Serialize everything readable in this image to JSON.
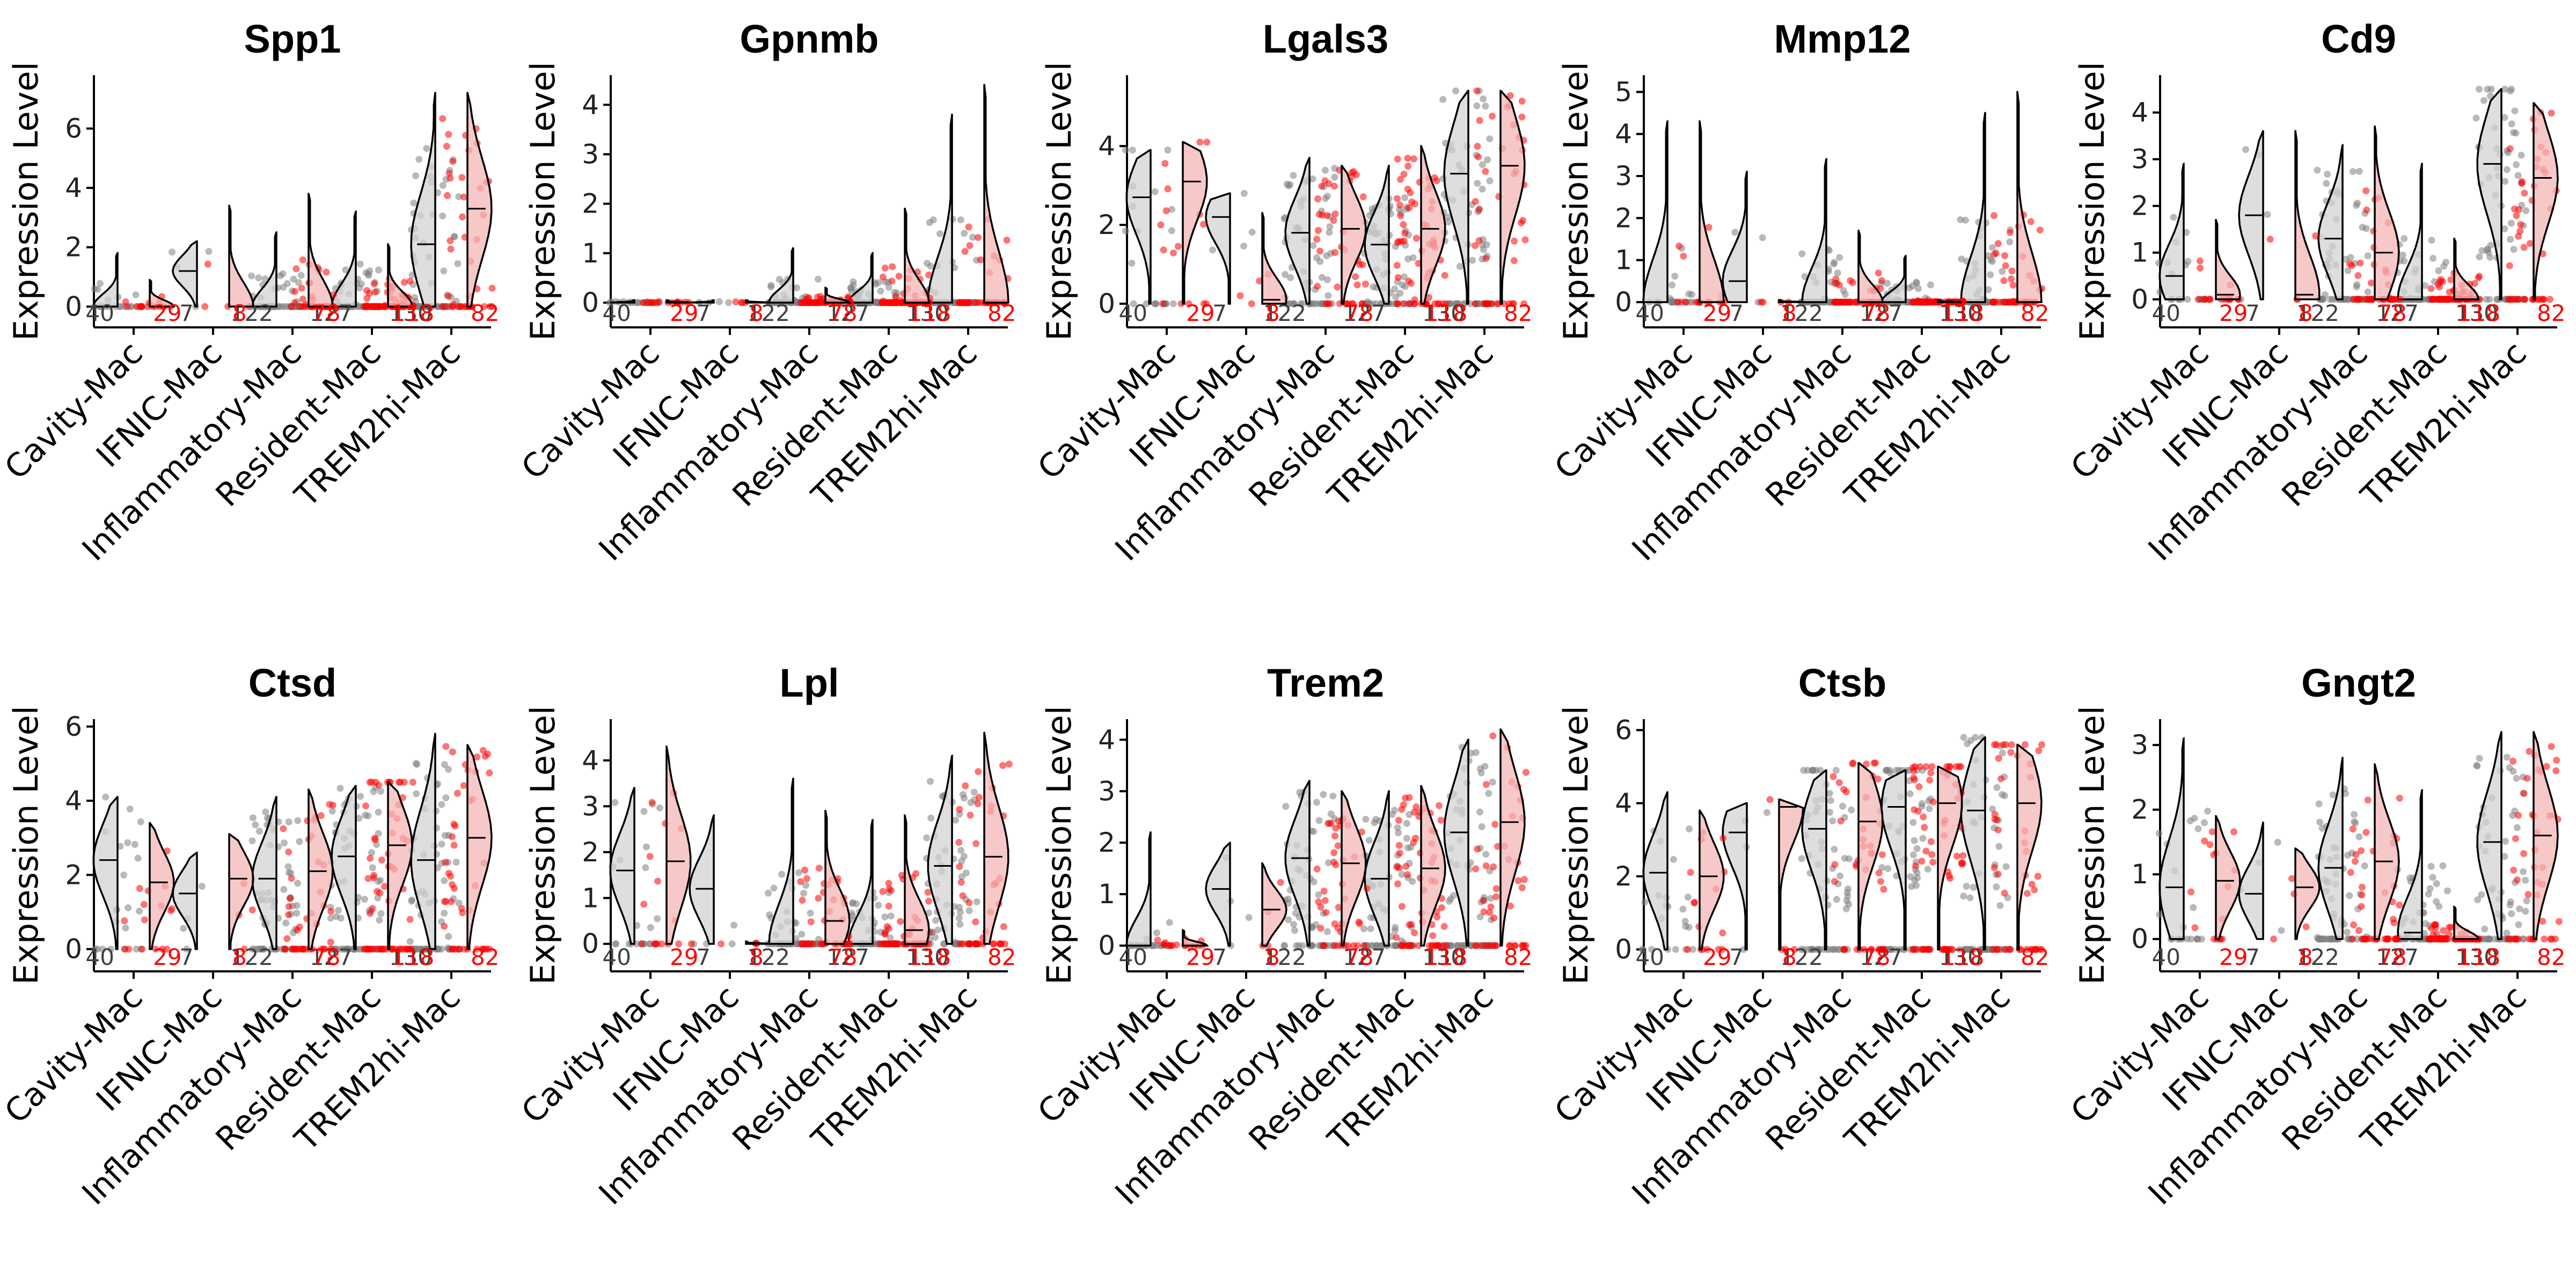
{
  "chart_data": [
    {
      "type": "violin",
      "title": "Spp1",
      "ylabel": "Expression Level",
      "ylim": [
        -0.7,
        7.8
      ],
      "yticks": [
        0,
        2,
        4,
        6
      ],
      "categories": [
        "Cavity-Mac",
        "IFNIC-Mac",
        "Inflammatory-Mac",
        "Resident-Mac",
        "TREM2hi-Mac"
      ],
      "groups": {
        "grey": {
          "color": "#7f7f7f",
          "counts": [
            "40",
            "7",
            "122",
            "127",
            "130"
          ],
          "medians": [
            0.0,
            1.2,
            0.0,
            0.0,
            2.1
          ],
          "maxima": [
            1.8,
            2.2,
            2.5,
            3.2,
            7.2
          ]
        },
        "red": {
          "color": "#ff0000",
          "counts": [
            "29",
            "8",
            "78",
            "118",
            "82"
          ],
          "medians": [
            0.0,
            0.0,
            0.0,
            0.0,
            3.3
          ],
          "maxima": [
            0.9,
            3.4,
            3.8,
            2.1,
            7.2
          ]
        }
      }
    },
    {
      "type": "violin",
      "title": "Gpnmb",
      "ylabel": "Expression Level",
      "ylim": [
        -0.5,
        4.6
      ],
      "yticks": [
        0,
        1,
        2,
        3,
        4
      ],
      "categories": [
        "Cavity-Mac",
        "IFNIC-Mac",
        "Inflammatory-Mac",
        "Resident-Mac",
        "TREM2hi-Mac"
      ],
      "groups": {
        "grey": {
          "color": "#7f7f7f",
          "counts": [
            "40",
            "7",
            "122",
            "127",
            "130"
          ],
          "medians": [
            0,
            0,
            0,
            0,
            0
          ],
          "maxima": [
            0.05,
            0.05,
            1.1,
            1.0,
            3.8
          ]
        },
        "red": {
          "color": "#ff0000",
          "counts": [
            "29",
            "8",
            "78",
            "118",
            "82"
          ],
          "medians": [
            0,
            0,
            0,
            0,
            0
          ],
          "maxima": [
            0.05,
            0.05,
            0.3,
            1.9,
            4.4
          ]
        }
      }
    },
    {
      "type": "violin",
      "title": "Lgals3",
      "ylabel": "Expression Level",
      "ylim": [
        -0.6,
        5.8
      ],
      "yticks": [
        0,
        2,
        4
      ],
      "categories": [
        "Cavity-Mac",
        "IFNIC-Mac",
        "Inflammatory-Mac",
        "Resident-Mac",
        "TREM2hi-Mac"
      ],
      "groups": {
        "grey": {
          "color": "#7f7f7f",
          "counts": [
            "40",
            "7",
            "122",
            "127",
            "130"
          ],
          "medians": [
            2.7,
            2.2,
            1.8,
            1.5,
            3.3
          ],
          "maxima": [
            3.9,
            2.8,
            3.7,
            3.5,
            5.4
          ]
        },
        "red": {
          "color": "#ff0000",
          "counts": [
            "29",
            "8",
            "78",
            "118",
            "82"
          ],
          "medians": [
            3.1,
            0.1,
            1.9,
            1.9,
            3.5
          ],
          "maxima": [
            4.1,
            2.3,
            3.5,
            4.0,
            5.4
          ]
        }
      }
    },
    {
      "type": "violin",
      "title": "Mmp12",
      "ylabel": "Expression Level",
      "ylim": [
        -0.6,
        5.4
      ],
      "yticks": [
        0,
        1,
        2,
        3,
        4,
        5
      ],
      "categories": [
        "Cavity-Mac",
        "IFNIC-Mac",
        "Inflammatory-Mac",
        "Resident-Mac",
        "TREM2hi-Mac"
      ],
      "groups": {
        "grey": {
          "color": "#7f7f7f",
          "counts": [
            "40",
            "7",
            "122",
            "127",
            "130"
          ],
          "medians": [
            0,
            0.5,
            0,
            0,
            0
          ],
          "maxima": [
            4.3,
            3.1,
            3.4,
            1.1,
            4.5
          ]
        },
        "red": {
          "color": "#ff0000",
          "counts": [
            "29",
            "8",
            "78",
            "118",
            "82"
          ],
          "medians": [
            0,
            0,
            0,
            0,
            0
          ],
          "maxima": [
            4.3,
            0.05,
            1.7,
            0.05,
            5.0
          ]
        }
      }
    },
    {
      "type": "violin",
      "title": "Cd9",
      "ylabel": "Expression Level",
      "ylim": [
        -0.6,
        4.8
      ],
      "yticks": [
        0,
        1,
        2,
        3,
        4
      ],
      "categories": [
        "Cavity-Mac",
        "IFNIC-Mac",
        "Inflammatory-Mac",
        "Resident-Mac",
        "TREM2hi-Mac"
      ],
      "groups": {
        "grey": {
          "color": "#7f7f7f",
          "counts": [
            "40",
            "7",
            "122",
            "127",
            "130"
          ],
          "medians": [
            0.5,
            1.8,
            1.3,
            0,
            2.9
          ],
          "maxima": [
            2.9,
            3.6,
            3.3,
            2.9,
            4.5
          ]
        },
        "red": {
          "color": "#ff0000",
          "counts": [
            "29",
            "8",
            "78",
            "118",
            "82"
          ],
          "medians": [
            0.1,
            0.1,
            1.0,
            0,
            2.6
          ],
          "maxima": [
            1.7,
            3.6,
            3.7,
            1.3,
            4.2
          ]
        }
      }
    },
    {
      "type": "violin",
      "title": "Ctsd",
      "ylabel": "Expression Level",
      "ylim": [
        -0.6,
        6.2
      ],
      "yticks": [
        0,
        2,
        4,
        6
      ],
      "categories": [
        "Cavity-Mac",
        "IFNIC-Mac",
        "Inflammatory-Mac",
        "Resident-Mac",
        "TREM2hi-Mac"
      ],
      "groups": {
        "grey": {
          "color": "#7f7f7f",
          "counts": [
            "40",
            "7",
            "122",
            "127",
            "130"
          ],
          "medians": [
            2.4,
            1.5,
            1.9,
            2.5,
            2.4
          ],
          "maxima": [
            4.1,
            2.6,
            4.1,
            4.4,
            5.8
          ]
        },
        "red": {
          "color": "#ff0000",
          "counts": [
            "29",
            "8",
            "78",
            "118",
            "82"
          ],
          "medians": [
            1.8,
            1.9,
            2.1,
            2.8,
            3.0
          ],
          "maxima": [
            3.4,
            3.1,
            4.3,
            4.5,
            5.5
          ]
        }
      }
    },
    {
      "type": "violin",
      "title": "Lpl",
      "ylabel": "Expression Level",
      "ylim": [
        -0.6,
        4.9
      ],
      "yticks": [
        0,
        1,
        2,
        3,
        4
      ],
      "categories": [
        "Cavity-Mac",
        "IFNIC-Mac",
        "Inflammatory-Mac",
        "Resident-Mac",
        "TREM2hi-Mac"
      ],
      "groups": {
        "grey": {
          "color": "#7f7f7f",
          "counts": [
            "40",
            "7",
            "122",
            "127",
            "130"
          ],
          "medians": [
            1.6,
            1.2,
            0,
            0,
            1.7
          ],
          "maxima": [
            3.4,
            2.8,
            3.6,
            2.7,
            4.1
          ]
        },
        "red": {
          "color": "#ff0000",
          "counts": [
            "29",
            "8",
            "78",
            "118",
            "82"
          ],
          "medians": [
            1.8,
            0,
            0.5,
            0.3,
            1.9
          ],
          "maxima": [
            4.3,
            0.05,
            2.9,
            2.8,
            4.6
          ]
        }
      }
    },
    {
      "type": "violin",
      "title": "Trem2",
      "ylabel": "Expression Level",
      "ylim": [
        -0.5,
        4.4
      ],
      "yticks": [
        0,
        1,
        2,
        3,
        4
      ],
      "categories": [
        "Cavity-Mac",
        "IFNIC-Mac",
        "Inflammatory-Mac",
        "Resident-Mac",
        "TREM2hi-Mac"
      ],
      "groups": {
        "grey": {
          "color": "#7f7f7f",
          "counts": [
            "40",
            "7",
            "122",
            "127",
            "130"
          ],
          "medians": [
            0,
            1.1,
            1.7,
            1.3,
            2.2
          ],
          "maxima": [
            2.2,
            2.0,
            3.2,
            3.0,
            4.0
          ]
        },
        "red": {
          "color": "#ff0000",
          "counts": [
            "29",
            "8",
            "78",
            "118",
            "82"
          ],
          "medians": [
            0,
            0.7,
            1.6,
            1.5,
            2.4
          ],
          "maxima": [
            0.3,
            1.6,
            3.0,
            3.1,
            4.2
          ]
        }
      }
    },
    {
      "type": "violin",
      "title": "Ctsb",
      "ylabel": "Expression Level",
      "ylim": [
        -0.6,
        6.3
      ],
      "yticks": [
        0,
        2,
        4,
        6
      ],
      "categories": [
        "Cavity-Mac",
        "IFNIC-Mac",
        "Inflammatory-Mac",
        "Resident-Mac",
        "TREM2hi-Mac"
      ],
      "groups": {
        "grey": {
          "color": "#7f7f7f",
          "counts": [
            "40",
            "7",
            "122",
            "127",
            "130"
          ],
          "medians": [
            2.1,
            3.2,
            3.3,
            3.9,
            3.8
          ],
          "maxima": [
            4.3,
            4.0,
            4.9,
            4.9,
            5.8
          ]
        },
        "red": {
          "color": "#ff0000",
          "counts": [
            "29",
            "8",
            "78",
            "118",
            "82"
          ],
          "medians": [
            2.0,
            3.9,
            3.5,
            4.0,
            4.0
          ],
          "maxima": [
            3.8,
            4.1,
            5.1,
            5.0,
            5.6
          ]
        }
      }
    },
    {
      "type": "violin",
      "title": "Gngt2",
      "ylabel": "Expression Level",
      "ylim": [
        -0.5,
        3.4
      ],
      "yticks": [
        0,
        1,
        2,
        3
      ],
      "categories": [
        "Cavity-Mac",
        "IFNIC-Mac",
        "Inflammatory-Mac",
        "Resident-Mac",
        "TREM2hi-Mac"
      ],
      "groups": {
        "grey": {
          "color": "#7f7f7f",
          "counts": [
            "40",
            "7",
            "122",
            "127",
            "130"
          ],
          "medians": [
            0.8,
            0.7,
            1.1,
            0.1,
            1.5
          ],
          "maxima": [
            3.1,
            1.8,
            2.8,
            2.3,
            3.2
          ]
        },
        "red": {
          "color": "#ff0000",
          "counts": [
            "29",
            "8",
            "78",
            "118",
            "82"
          ],
          "medians": [
            0.9,
            0.8,
            1.2,
            0.0,
            1.6
          ],
          "maxima": [
            1.9,
            1.4,
            2.7,
            0.5,
            3.2
          ]
        }
      }
    }
  ]
}
